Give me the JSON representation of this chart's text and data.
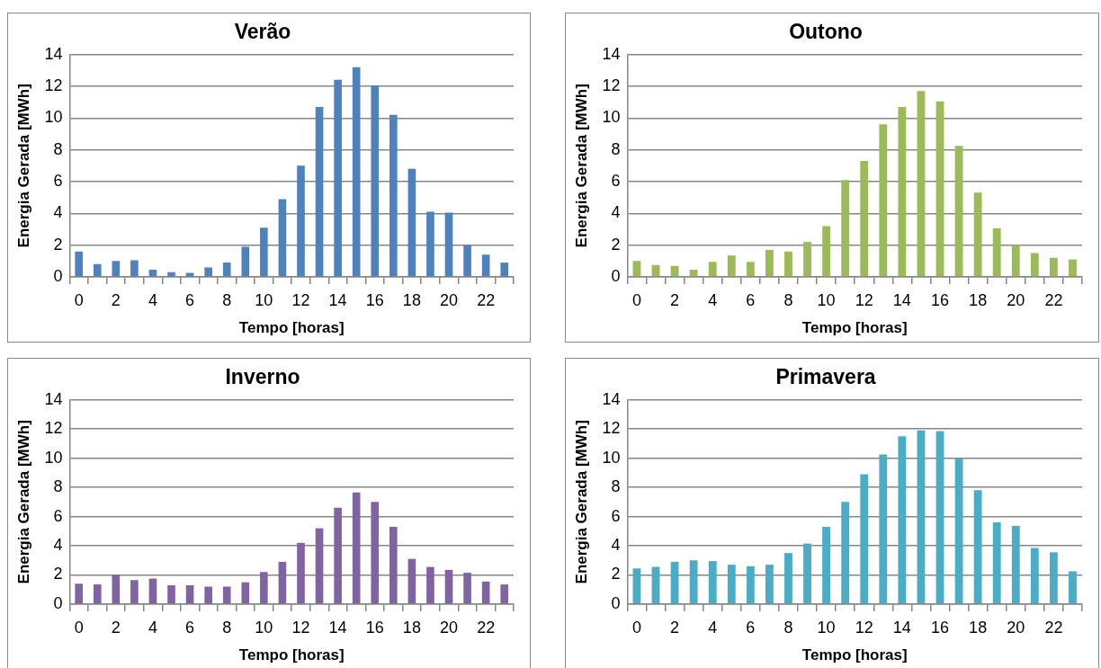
{
  "chart_data": [
    {
      "type": "bar",
      "title": "Verão",
      "xlabel": "Tempo [horas]",
      "ylabel": "Energia Gerada [MWh]",
      "categories": [
        "0",
        null,
        "2",
        null,
        "4",
        null,
        "6",
        null,
        "8",
        null,
        "10",
        null,
        "12",
        null,
        "14",
        null,
        "16",
        null,
        "18",
        null,
        "20",
        null,
        "22",
        null
      ],
      "values": [
        1.6,
        0.8,
        1.0,
        1.05,
        0.45,
        0.3,
        0.25,
        0.6,
        0.9,
        1.9,
        3.1,
        4.9,
        7.0,
        10.7,
        12.4,
        13.2,
        12.05,
        10.2,
        6.8,
        4.1,
        4.05,
        2.0,
        1.4,
        0.9
      ],
      "color": "#4f81bd",
      "ylim": [
        0,
        14
      ],
      "yticks": [
        0,
        2,
        4,
        6,
        8,
        10,
        12,
        14
      ],
      "grid": "y",
      "legend": false
    },
    {
      "type": "bar",
      "title": "Outono",
      "xlabel": "Tempo [horas]",
      "ylabel": "Energia Gerada [MWh]",
      "categories": [
        "0",
        null,
        "2",
        null,
        "4",
        null,
        "6",
        null,
        "8",
        null,
        "10",
        null,
        "12",
        null,
        "14",
        null,
        "16",
        null,
        "18",
        null,
        "20",
        null,
        "22",
        null
      ],
      "values": [
        1.0,
        0.75,
        0.7,
        0.45,
        0.95,
        1.35,
        0.95,
        1.7,
        1.6,
        2.2,
        3.2,
        6.1,
        7.3,
        9.6,
        10.7,
        11.7,
        11.05,
        8.25,
        5.3,
        3.05,
        2.0,
        1.5,
        1.2,
        1.1
      ],
      "color": "#9bbb59",
      "ylim": [
        0,
        14
      ],
      "yticks": [
        0,
        2,
        4,
        6,
        8,
        10,
        12,
        14
      ],
      "grid": "y",
      "legend": false
    },
    {
      "type": "bar",
      "title": "Inverno",
      "xlabel": "Tempo [horas]",
      "ylabel": "Energia Gerada [MWh]",
      "categories": [
        "0",
        null,
        "2",
        null,
        "4",
        null,
        "6",
        null,
        "8",
        null,
        "10",
        null,
        "12",
        null,
        "14",
        null,
        "16",
        null,
        "18",
        null,
        "20",
        null,
        "22",
        null
      ],
      "values": [
        1.4,
        1.35,
        2.0,
        1.65,
        1.75,
        1.3,
        1.3,
        1.2,
        1.2,
        1.5,
        2.2,
        2.9,
        4.2,
        5.2,
        6.6,
        7.65,
        7.0,
        5.3,
        3.1,
        2.55,
        2.35,
        2.15,
        1.55,
        1.35
      ],
      "color": "#8064a2",
      "ylim": [
        0,
        14
      ],
      "yticks": [
        0,
        2,
        4,
        6,
        8,
        10,
        12,
        14
      ],
      "grid": "y",
      "legend": false
    },
    {
      "type": "bar",
      "title": "Primavera",
      "xlabel": "Tempo [horas]",
      "ylabel": "Energia Gerada [MWh]",
      "categories": [
        "0",
        null,
        "2",
        null,
        "4",
        null,
        "6",
        null,
        "8",
        null,
        "10",
        null,
        "12",
        null,
        "14",
        null,
        "16",
        null,
        "18",
        null,
        "20",
        null,
        "22",
        null
      ],
      "values": [
        2.45,
        2.55,
        2.9,
        3.0,
        2.95,
        2.7,
        2.6,
        2.7,
        3.5,
        4.15,
        5.3,
        7.0,
        8.9,
        10.25,
        11.5,
        11.9,
        11.85,
        10.0,
        7.8,
        5.6,
        5.35,
        3.85,
        3.55,
        2.25
      ],
      "color": "#4bacc6",
      "ylim": [
        0,
        14
      ],
      "yticks": [
        0,
        2,
        4,
        6,
        8,
        10,
        12,
        14
      ],
      "grid": "y",
      "legend": false
    }
  ]
}
